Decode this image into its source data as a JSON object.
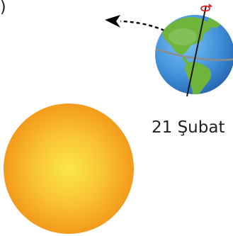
{
  "edge_mark": ")",
  "date_label": "21 Şubat",
  "icons": {
    "sun": "sun-icon",
    "earth": "earth-globe-icon",
    "orbit_arrow": "dashed-arrow-icon",
    "rotation": "rotation-arrow-icon"
  },
  "colors": {
    "sun_core": "#fbe84a",
    "sun_edge": "#f39a1c",
    "ocean": "#3f8ed8",
    "land": "#6fb53b",
    "axis": "#1a1a1a",
    "rotation_arrow": "#e0262a",
    "text": "#231f20"
  }
}
